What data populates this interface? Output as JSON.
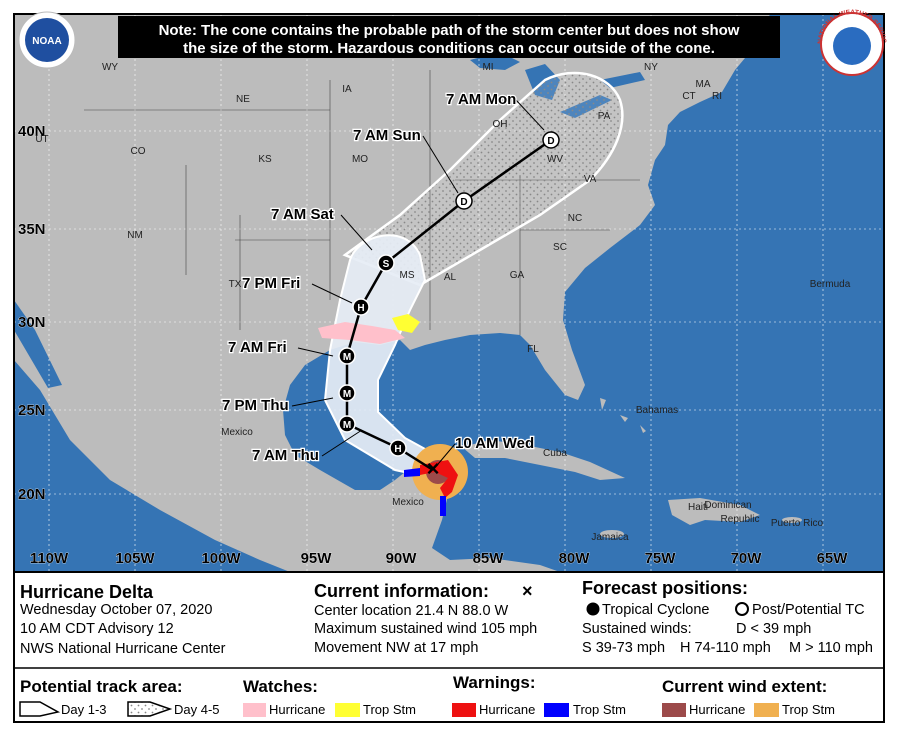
{
  "note": [
    "Note: The cone contains the probable path of the storm center but does not show",
    "the size of the storm. Hazardous conditions can occur outside of the cone."
  ],
  "logos": {
    "left": "NOAA",
    "right": "NATIONAL WEATHER SERVICE"
  },
  "map": {
    "latitudes": [
      "40N",
      "35N",
      "30N",
      "25N",
      "20N"
    ],
    "longitudes": [
      "110W",
      "105W",
      "100W",
      "95W",
      "90W",
      "85W",
      "80W",
      "75W",
      "70W",
      "65W"
    ],
    "places": [
      "WY",
      "NE",
      "IA",
      "MI",
      "NY",
      "MA",
      "CT",
      "RI",
      "PA",
      "OH",
      "WV",
      "VA",
      "MO",
      "KS",
      "CO",
      "UT",
      "NM",
      "TX",
      "NC",
      "SC",
      "MS",
      "AL",
      "GA",
      "FL",
      "Bermuda",
      "Bahamas",
      "Cuba",
      "Mexico",
      "Mexico",
      "Haiti",
      "Dominican",
      "Republic",
      "Puerto Rico",
      "Jamaica"
    ],
    "forecast": [
      {
        "time": "10 AM Wed",
        "symbol": "×"
      },
      {
        "symbol": "H"
      },
      {
        "time": "7 AM Thu",
        "symbol": "M"
      },
      {
        "time": "7 PM Thu",
        "symbol": "M"
      },
      {
        "time": "7 AM Fri",
        "symbol": "M"
      },
      {
        "time": "7 PM Fri",
        "symbol": "H"
      },
      {
        "time": "7 AM Sat",
        "symbol": "S"
      },
      {
        "time": "7 AM Sun",
        "symbol": "D"
      },
      {
        "time": "7 AM Mon",
        "symbol": "D"
      }
    ]
  },
  "panel": {
    "storm": [
      "Hurricane Delta",
      "Wednesday October 07, 2020",
      "10 AM CDT Advisory 12",
      "NWS National Hurricane Center"
    ],
    "current": {
      "title": "Current information:",
      "symbol": "×",
      "lines": [
        "Center location 21.4 N 88.0 W",
        "Maximum sustained wind 105 mph",
        "Movement NW at 17 mph"
      ]
    },
    "forecast": {
      "title": "Forecast positions:",
      "tropical": "Tropical Cyclone",
      "post": "Post/Potential TC",
      "winds": "Sustained winds:",
      "d": "D < 39 mph",
      "s": "S 39-73 mph",
      "h": "H 74-110 mph",
      "m": "M > 110 mph"
    },
    "track": {
      "title": "Potential track area:",
      "day13": "Day 1-3",
      "day45": "Day 4-5"
    },
    "watches": {
      "title": "Watches:",
      "hurricane": "Hurricane",
      "tropstm": "Trop Stm"
    },
    "warnings": {
      "title": "Warnings:",
      "hurricane": "Hurricane",
      "tropstm": "Trop Stm"
    },
    "wind": {
      "title": "Current wind extent:",
      "hurricane": "Hurricane",
      "tropstm": "Trop Stm"
    }
  }
}
